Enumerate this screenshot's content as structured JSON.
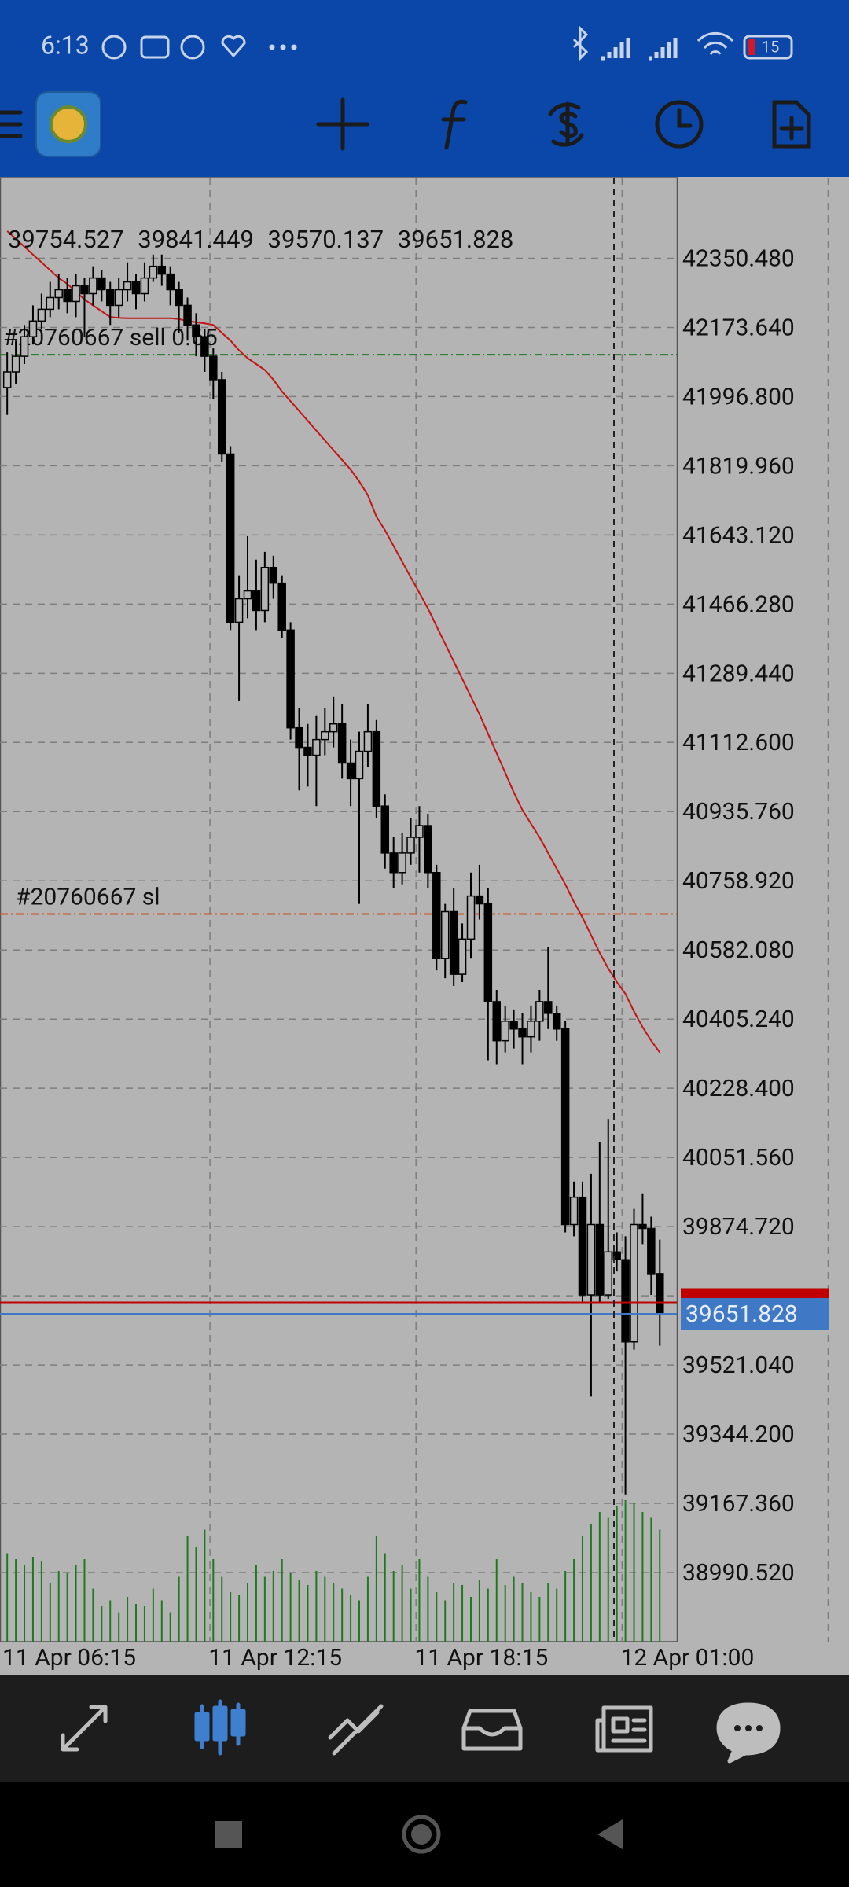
{
  "status_bar": {
    "time": "6:13",
    "battery": "15"
  },
  "chart_data": {
    "type": "candlestick",
    "categories": [
      "11 Apr 06:15",
      null,
      null,
      null,
      null,
      null,
      null,
      null,
      null,
      null,
      null,
      null,
      null,
      null,
      null,
      null,
      null,
      null,
      null,
      null,
      null,
      null,
      null,
      null,
      "11 Apr 12:15",
      null,
      null,
      null,
      null,
      null,
      null,
      null,
      null,
      null,
      null,
      null,
      null,
      null,
      null,
      null,
      null,
      null,
      null,
      null,
      null,
      null,
      null,
      null,
      "11 Apr 18:15",
      null,
      null,
      null,
      null,
      null,
      null,
      null,
      null,
      null,
      null,
      null,
      null,
      null,
      null,
      null,
      null,
      null,
      null,
      null,
      null,
      null,
      null,
      null,
      "12 Apr 01:00",
      null,
      null,
      null,
      null
    ],
    "open": [
      42020,
      42060,
      42100,
      42150,
      42190,
      42220,
      42250,
      42270,
      42240,
      42280,
      42260,
      42300,
      42270,
      42230,
      42270,
      42290,
      42260,
      42300,
      42330,
      42310,
      42270,
      42230,
      42180,
      42150,
      42100,
      42040,
      41850,
      41420,
      41480,
      41500,
      41450,
      41560,
      41520,
      41400,
      41150,
      41100,
      41080,
      41120,
      41140,
      41160,
      41060,
      41020,
      41090,
      41140,
      40950,
      40830,
      40780,
      40830,
      40870,
      40900,
      40780,
      40560,
      40680,
      40520,
      40610,
      40720,
      40700,
      40450,
      40350,
      40400,
      40380,
      40360,
      40400,
      40450,
      40420,
      40380,
      39880,
      39950,
      39700,
      39880,
      39700,
      39810,
      39790,
      39580,
      39880,
      39870,
      39754.527
    ],
    "high": [
      42110,
      42140,
      42180,
      42230,
      42260,
      42290,
      42310,
      42300,
      42310,
      42300,
      42330,
      42320,
      42290,
      42300,
      42340,
      42310,
      42340,
      42360,
      42360,
      42330,
      42290,
      42250,
      42210,
      42170,
      42120,
      42060,
      41870,
      41540,
      41640,
      41580,
      41600,
      41590,
      41540,
      41420,
      41200,
      41160,
      41180,
      41200,
      41230,
      41210,
      41120,
      41140,
      41210,
      41170,
      40980,
      40870,
      40880,
      40920,
      40950,
      40930,
      40800,
      40700,
      40740,
      40650,
      40780,
      40800,
      40740,
      40480,
      40440,
      40430,
      40420,
      40440,
      40480,
      40590,
      40440,
      40400,
      39990,
      39990,
      40010,
      40090,
      40150,
      39860,
      39850,
      39920,
      39960,
      39900,
      39841.449
    ],
    "low": [
      41950,
      42030,
      42080,
      42130,
      42170,
      42200,
      42220,
      42210,
      42200,
      42150,
      42230,
      42240,
      42180,
      42200,
      42240,
      42220,
      42240,
      42290,
      42280,
      42230,
      42160,
      42140,
      42100,
      42060,
      41990,
      41830,
      41400,
      41220,
      41430,
      41400,
      41420,
      41480,
      41380,
      41120,
      40990,
      41000,
      40950,
      41080,
      41100,
      41020,
      40950,
      40700,
      41050,
      40920,
      40790,
      40740,
      40750,
      40800,
      40780,
      40740,
      40530,
      40510,
      40490,
      40500,
      40560,
      40660,
      40300,
      40290,
      40320,
      40330,
      40290,
      40320,
      40350,
      40380,
      40350,
      39860,
      39850,
      39680,
      39440,
      39680,
      39690,
      39760,
      39190,
      39560,
      39830,
      39700,
      39570.137
    ],
    "close": [
      42060,
      42100,
      42150,
      42190,
      42220,
      42250,
      42270,
      42240,
      42280,
      42260,
      42300,
      42270,
      42230,
      42270,
      42290,
      42260,
      42300,
      42330,
      42310,
      42270,
      42230,
      42180,
      42150,
      42100,
      42040,
      41850,
      41420,
      41480,
      41500,
      41450,
      41560,
      41520,
      41400,
      41150,
      41100,
      41080,
      41120,
      41140,
      41160,
      41060,
      41020,
      41090,
      41140,
      40950,
      40830,
      40780,
      40830,
      40870,
      40900,
      40780,
      40560,
      40680,
      40520,
      40610,
      40720,
      40700,
      40450,
      40350,
      40400,
      40380,
      40360,
      40400,
      40450,
      40420,
      40380,
      39880,
      39950,
      39700,
      39880,
      39700,
      39810,
      39790,
      39580,
      39880,
      39870,
      39754.527,
      39651.828
    ],
    "volume": {
      "color": "#1f7a1f",
      "values": [
        75,
        70,
        65,
        72,
        68,
        50,
        60,
        58,
        65,
        70,
        45,
        30,
        35,
        25,
        38,
        32,
        30,
        45,
        35,
        25,
        55,
        90,
        80,
        95,
        70,
        55,
        42,
        40,
        50,
        65,
        55,
        60,
        70,
        58,
        52,
        48,
        60,
        55,
        50,
        45,
        40,
        35,
        55,
        90,
        75,
        60,
        65,
        45,
        70,
        55,
        42,
        35,
        50,
        48,
        38,
        52,
        45,
        70,
        48,
        55,
        50,
        42,
        38,
        50,
        45,
        60,
        70,
        90,
        100,
        110,
        105,
        115,
        120,
        118,
        110,
        105,
        95
      ]
    },
    "ma": {
      "color": "#c41414",
      "values": [
        42420,
        42400,
        42380,
        42360,
        42340,
        42320,
        42300,
        42285,
        42265,
        42245,
        42230,
        42215,
        42200,
        42198,
        42197,
        42197,
        42197,
        42197,
        42197,
        42197,
        42195,
        42190,
        42187,
        42184,
        42180,
        42160,
        42140,
        42115,
        42095,
        42080,
        42065,
        42040,
        42010,
        41985,
        41960,
        41935,
        41910,
        41885,
        41860,
        41835,
        41810,
        41780,
        41745,
        41690,
        41655,
        41615,
        41575,
        41535,
        41495,
        41455,
        41410,
        41365,
        41320,
        41275,
        41230,
        41185,
        41135,
        41085,
        41035,
        40985,
        40940,
        40905,
        40870,
        40830,
        40790,
        40750,
        40705,
        40665,
        40620,
        40575,
        40535,
        40500,
        40470,
        40425,
        40385,
        40350,
        40320
      ]
    },
    "ylim": [
      38813.6,
      42556.5
    ],
    "yticks": [
      {
        "value": 42350.48,
        "label": "42350.480"
      },
      {
        "value": 42173.64,
        "label": "42173.640"
      },
      {
        "value": 41996.8,
        "label": "41996.800"
      },
      {
        "value": 41819.96,
        "label": "41819.960"
      },
      {
        "value": 41643.12,
        "label": "41643.120"
      },
      {
        "value": 41466.28,
        "label": "41466.280"
      },
      {
        "value": 41289.44,
        "label": "41289.440"
      },
      {
        "value": 41112.6,
        "label": "41112.600"
      },
      {
        "value": 40935.76,
        "label": "40935.760"
      },
      {
        "value": 40758.92,
        "label": "40758.920"
      },
      {
        "value": 40582.08,
        "label": "40582.080"
      },
      {
        "value": 40405.24,
        "label": "40405.240"
      },
      {
        "value": 40228.4,
        "label": "40228.400"
      },
      {
        "value": 40051.56,
        "label": "40051.560"
      },
      {
        "value": 39874.72,
        "label": "39874.720"
      },
      {
        "value": 39697.88,
        "label": null
      },
      {
        "value": 39521.04,
        "label": "39521.040"
      },
      {
        "value": 39344.2,
        "label": "39344.200"
      },
      {
        "value": 39167.36,
        "label": "39167.360"
      },
      {
        "value": 38990.52,
        "label": "38990.520"
      }
    ],
    "grid": true,
    "levels": [
      {
        "label": "#20760667 sell 0.65",
        "value": 42104,
        "color": "#1e7a1e"
      },
      {
        "label": "#20760667 sl",
        "value": 40674,
        "color": "#d0501a"
      }
    ],
    "ask": {
      "value": 39681,
      "color": "#c00000"
    },
    "bid_color": "#3f78c4"
  }
}
